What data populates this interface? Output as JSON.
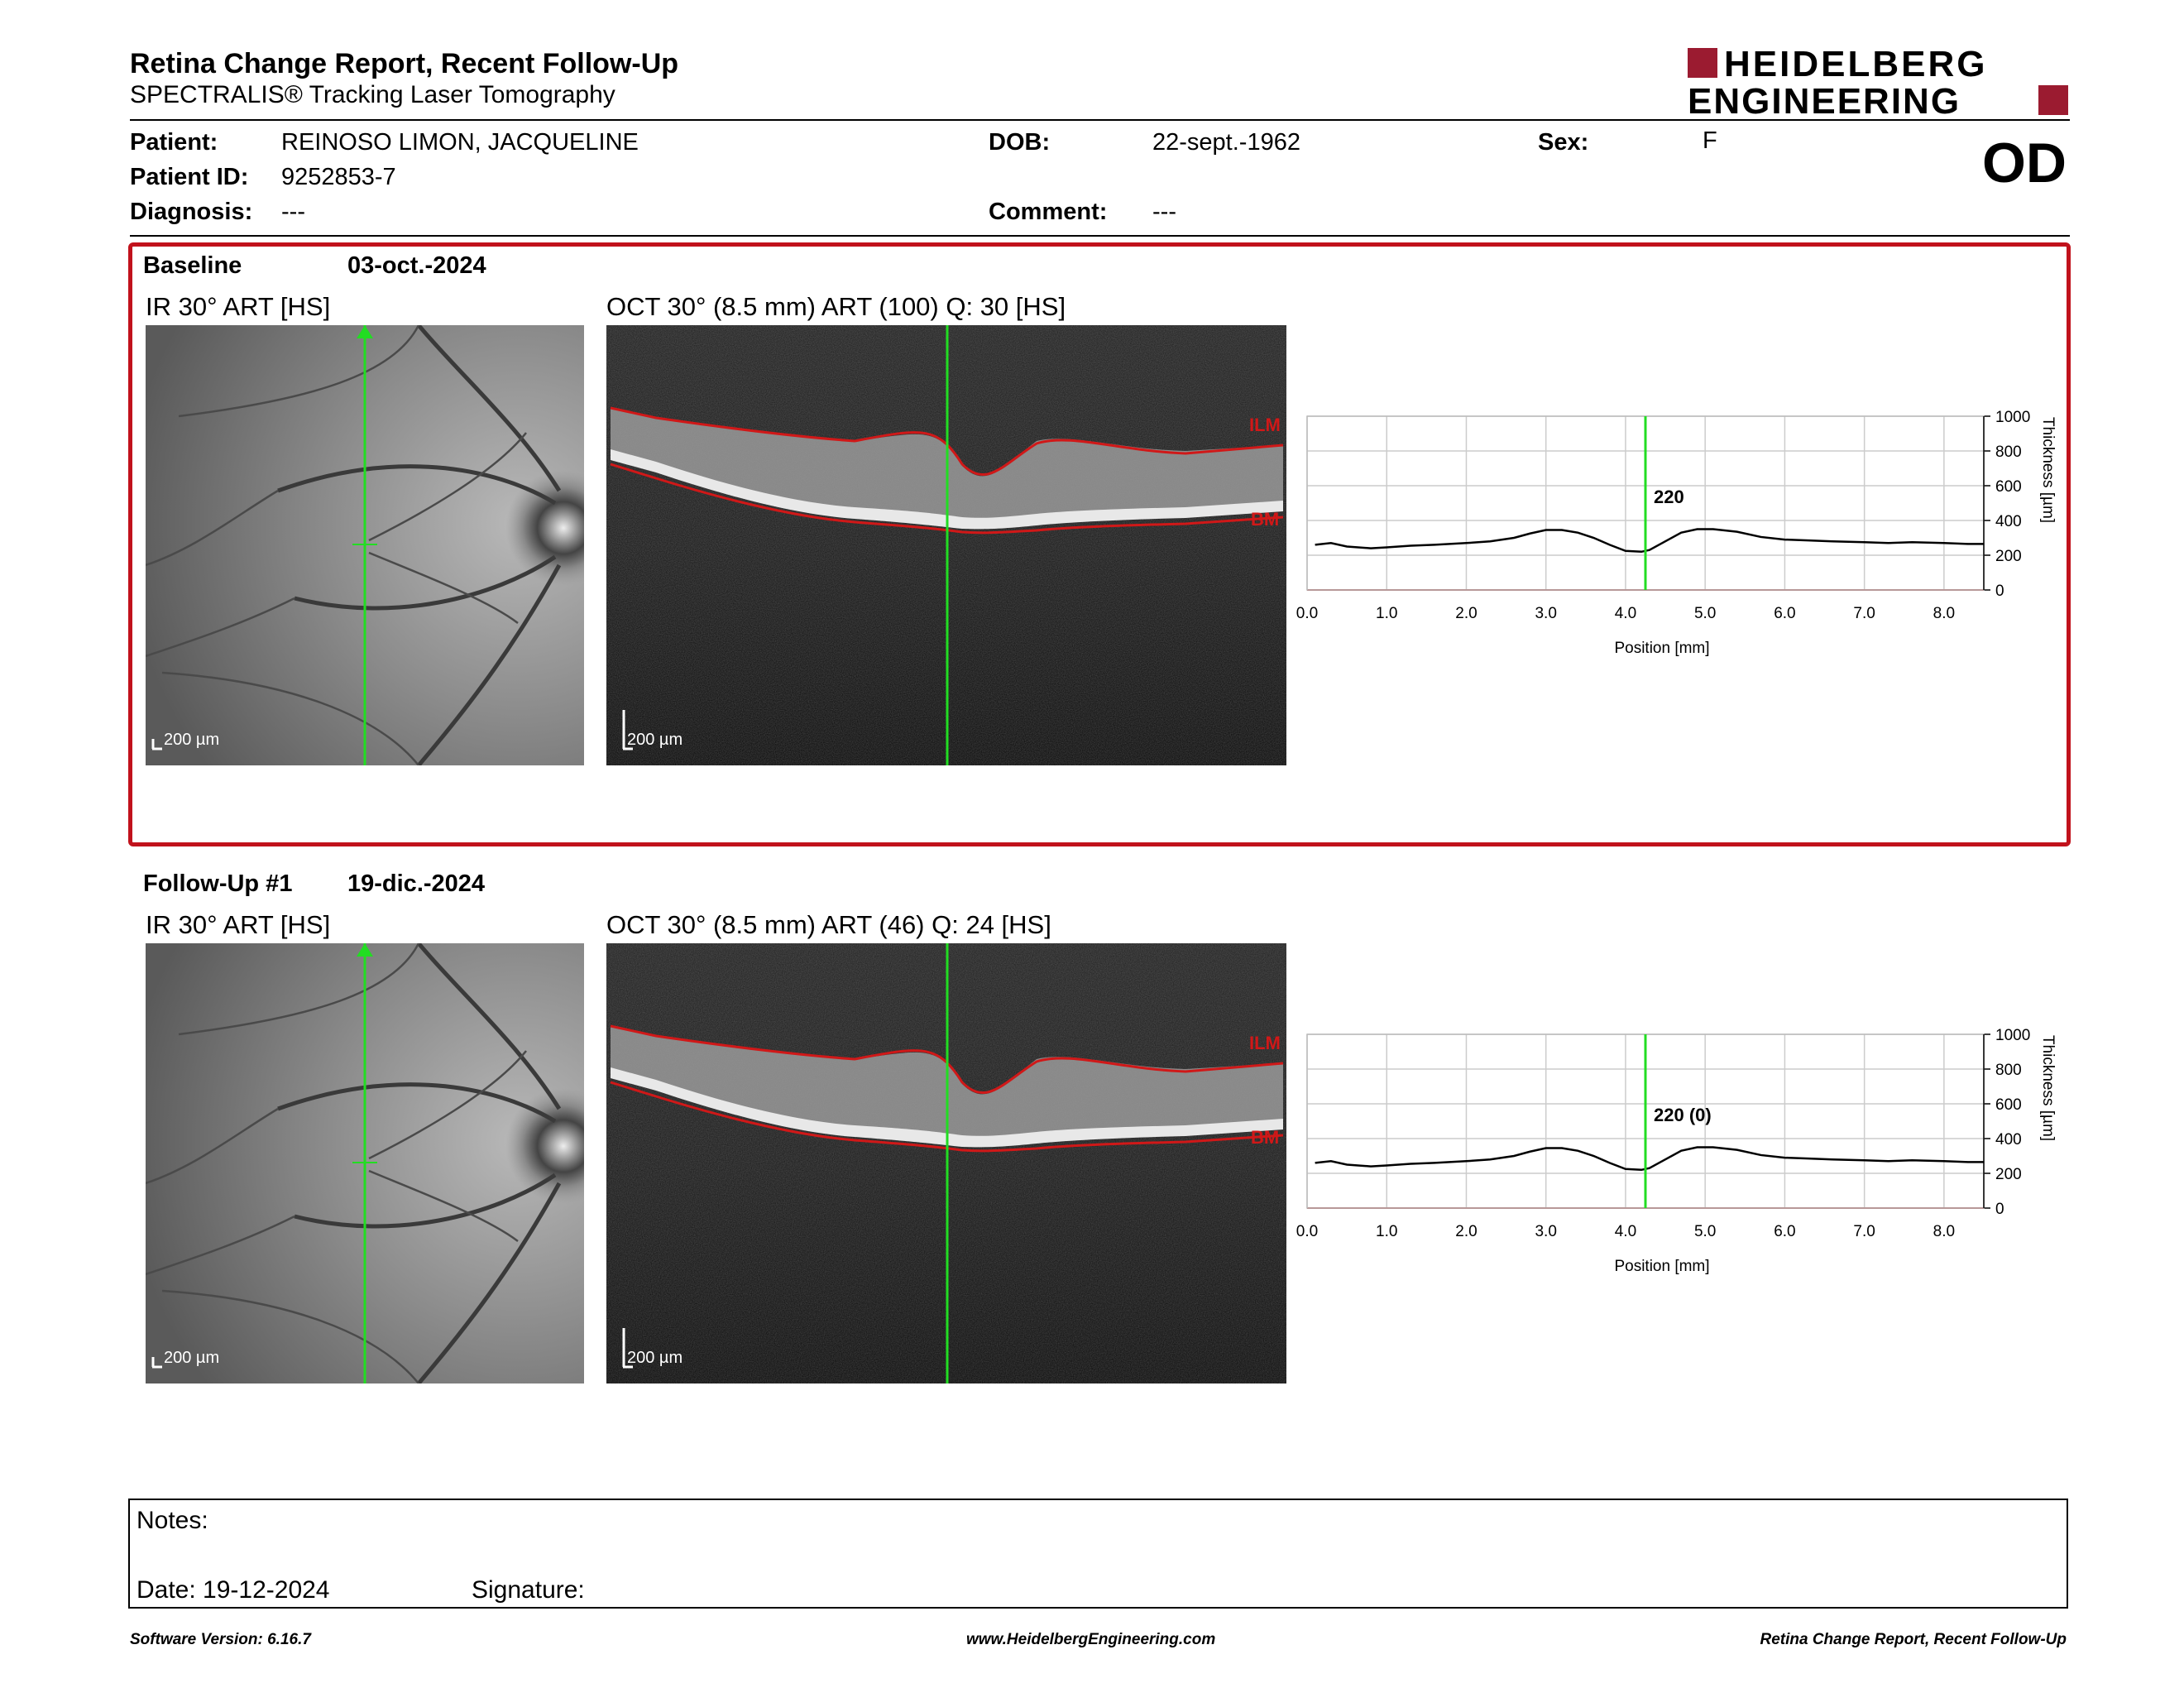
{
  "report": {
    "title": "Retina Change Report, Recent Follow-Up",
    "subtitle": "SPECTRALIS® Tracking Laser Tomography",
    "brand_line1": "HEIDELBERG",
    "brand_line2": "ENGINEERING",
    "brand_color": "#9b1b30",
    "eye": "OD"
  },
  "patient": {
    "patient_label": "Patient:",
    "patient_value": "REINOSO LIMON, JACQUELINE",
    "id_label": "Patient ID:",
    "id_value": "9252853-7",
    "diagnosis_label": "Diagnosis:",
    "diagnosis_value": "---",
    "dob_label": "DOB:",
    "dob_value": "22-sept.-1962",
    "comment_label": "Comment:",
    "comment_value": "---",
    "sex_label": "Sex:",
    "sex_value": "F"
  },
  "colors": {
    "highlight_border": "#c1121c",
    "scan_line": "#22dd22",
    "layer_line": "#d01818"
  },
  "exams": [
    {
      "label": "Baseline",
      "date": "03-oct.-2024",
      "ir_label": "IR 30° ART [HS]",
      "oct_label": "OCT 30° (8.5 mm) ART (100) Q: 30 [HS]",
      "scale": "200 µm",
      "ilm": "ILM",
      "bm": "BM",
      "marker": "220"
    },
    {
      "label": "Follow-Up #1",
      "date": "19-dic.-2024",
      "ir_label": "IR 30° ART [HS]",
      "oct_label": "OCT 30° (8.5 mm) ART (46) Q: 24 [HS]",
      "scale": "200 µm",
      "ilm": "ILM",
      "bm": "BM",
      "marker": "220 (0)"
    }
  ],
  "chart_data": [
    {
      "type": "line",
      "xlabel": "Position [mm]",
      "ylabel": "Thickness [µm]",
      "xlim": [
        0,
        8.5
      ],
      "ylim": [
        0,
        1000
      ],
      "xticks": [
        "0.0",
        "1.0",
        "2.0",
        "3.0",
        "4.0",
        "5.0",
        "6.0",
        "7.0",
        "8.0"
      ],
      "yticks": [
        "0",
        "200",
        "400",
        "600",
        "800",
        "1000"
      ],
      "marker_x": 4.25,
      "marker_label": "220",
      "x": [
        0.1,
        0.3,
        0.5,
        0.8,
        1.0,
        1.3,
        1.6,
        2.0,
        2.3,
        2.6,
        2.8,
        3.0,
        3.2,
        3.4,
        3.6,
        3.8,
        4.0,
        4.2,
        4.3,
        4.5,
        4.7,
        4.9,
        5.1,
        5.4,
        5.7,
        6.0,
        6.3,
        6.6,
        7.0,
        7.3,
        7.6,
        8.0,
        8.3,
        8.5
      ],
      "y": [
        260,
        270,
        250,
        240,
        245,
        255,
        260,
        270,
        280,
        300,
        325,
        345,
        345,
        330,
        300,
        260,
        225,
        220,
        230,
        280,
        330,
        350,
        350,
        335,
        305,
        290,
        285,
        280,
        275,
        270,
        275,
        270,
        265,
        265
      ]
    },
    {
      "type": "line",
      "xlabel": "Position [mm]",
      "ylabel": "Thickness [µm]",
      "xlim": [
        0,
        8.5
      ],
      "ylim": [
        0,
        1000
      ],
      "xticks": [
        "0.0",
        "1.0",
        "2.0",
        "3.0",
        "4.0",
        "5.0",
        "6.0",
        "7.0",
        "8.0"
      ],
      "yticks": [
        "0",
        "200",
        "400",
        "600",
        "800",
        "1000"
      ],
      "marker_x": 4.25,
      "marker_label": "220 (0)",
      "x": [
        0.1,
        0.3,
        0.5,
        0.8,
        1.0,
        1.3,
        1.6,
        2.0,
        2.3,
        2.6,
        2.8,
        3.0,
        3.2,
        3.4,
        3.6,
        3.8,
        4.0,
        4.2,
        4.3,
        4.5,
        4.7,
        4.9,
        5.1,
        5.4,
        5.7,
        6.0,
        6.3,
        6.6,
        7.0,
        7.3,
        7.6,
        8.0,
        8.3,
        8.5
      ],
      "y": [
        260,
        270,
        250,
        240,
        245,
        255,
        260,
        270,
        280,
        300,
        325,
        345,
        345,
        330,
        300,
        260,
        225,
        220,
        230,
        280,
        330,
        350,
        350,
        335,
        305,
        290,
        285,
        280,
        275,
        270,
        275,
        270,
        265,
        265
      ]
    }
  ],
  "notes": {
    "notes_label": "Notes:",
    "date_label": "Date: 19-12-2024",
    "signature_label": "Signature:"
  },
  "footer": {
    "left": "Software Version: 6.16.7",
    "center": "www.HeidelbergEngineering.com",
    "right": "Retina Change Report, Recent Follow-Up"
  }
}
